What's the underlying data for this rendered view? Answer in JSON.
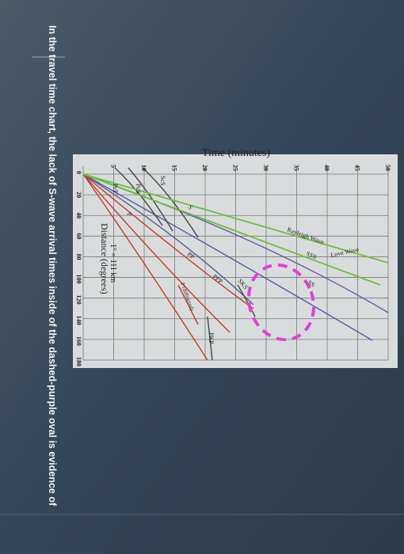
{
  "question": "In the travel time chart, the lack of S-wave arrival times inside of the dashed-purple oval is evidence of",
  "figure": {
    "title": "Time (minutes)",
    "x_axis_label": "Distance (degrees)",
    "x_axis_note": "1° = 111 km",
    "time_ticks": [
      "5",
      "10",
      "15",
      "20",
      "25",
      "30",
      "35",
      "40",
      "45",
      "50"
    ],
    "distance_ticks": [
      "0",
      "20",
      "40",
      "60",
      "80",
      "100",
      "120",
      "140",
      "160",
      "180"
    ],
    "phase_labels": [
      "P",
      "PcP",
      "PcS",
      "ScS",
      "S",
      "PP",
      "P (diffracted)",
      "PPP",
      "PKP",
      "SKS",
      "SS",
      "SSS",
      "Rayleigh Wave",
      "Love Wave"
    ]
  }
}
